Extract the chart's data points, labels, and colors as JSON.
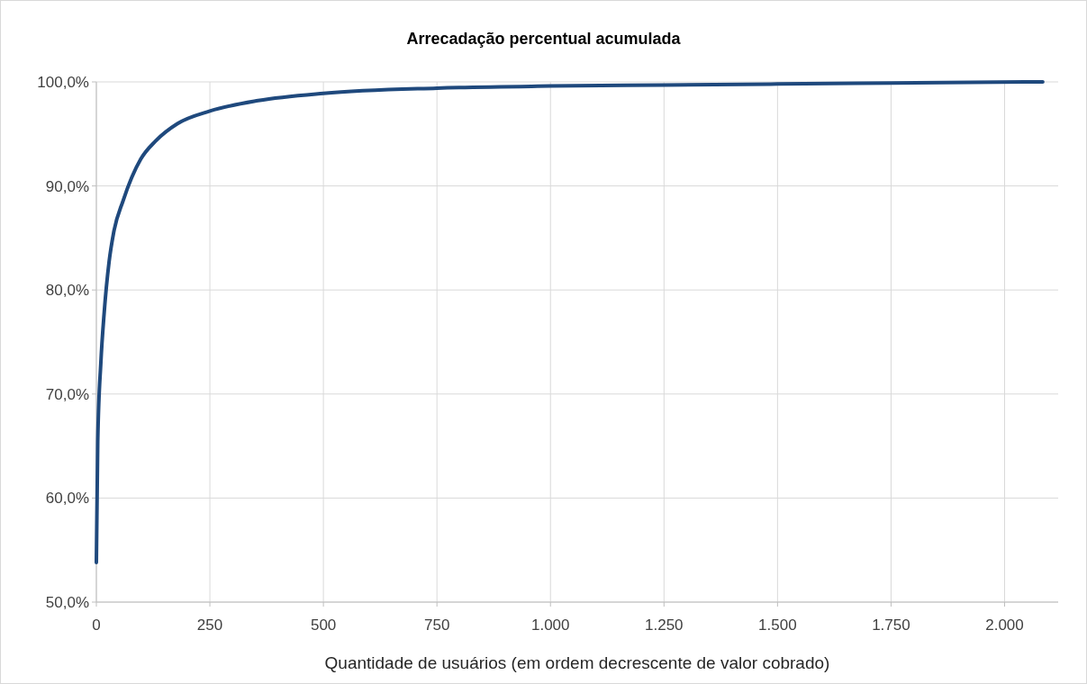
{
  "chart_data": {
    "type": "line",
    "title": "Arrecadação  percentual acumulada",
    "xlabel": "Quantidade de usuários (em ordem decrescente de valor cobrado)",
    "x": [
      0,
      3,
      10,
      17,
      28,
      38,
      59,
      98,
      130,
      179,
      250,
      356,
      500,
      750,
      1000,
      1250,
      1500,
      1750,
      2084
    ],
    "series": [
      {
        "color": "#1f497d",
        "values": [
          53.8,
          65.4,
          73.1,
          77.7,
          82.7,
          85.5,
          88.6,
          92.6,
          94.3,
          96.0,
          97.2,
          98.2,
          98.9,
          99.4,
          99.6,
          99.7,
          99.8,
          99.9,
          100.0
        ]
      }
    ],
    "xlim": [
      0,
      2118
    ],
    "xticks": [
      0,
      250,
      500,
      750,
      {
        "value": 1000,
        "label": "1.000"
      },
      {
        "value": 1250,
        "label": "1.250"
      },
      {
        "value": 1500,
        "label": "1.500"
      },
      {
        "value": 1750,
        "label": "1.750"
      },
      {
        "value": 2000,
        "label": "2.000"
      }
    ],
    "ylim": [
      50,
      100
    ],
    "yticks": [
      {
        "value": 50,
        "label": "50,0%"
      },
      {
        "value": 60,
        "label": "60,0%"
      },
      {
        "value": 70,
        "label": "70,0%"
      },
      {
        "value": 80,
        "label": "80,0%"
      },
      {
        "value": 90,
        "label": "90,0%"
      },
      {
        "value": 100,
        "label": "100,0%"
      }
    ],
    "grid": true,
    "marker": "none",
    "line_style": "solid"
  }
}
